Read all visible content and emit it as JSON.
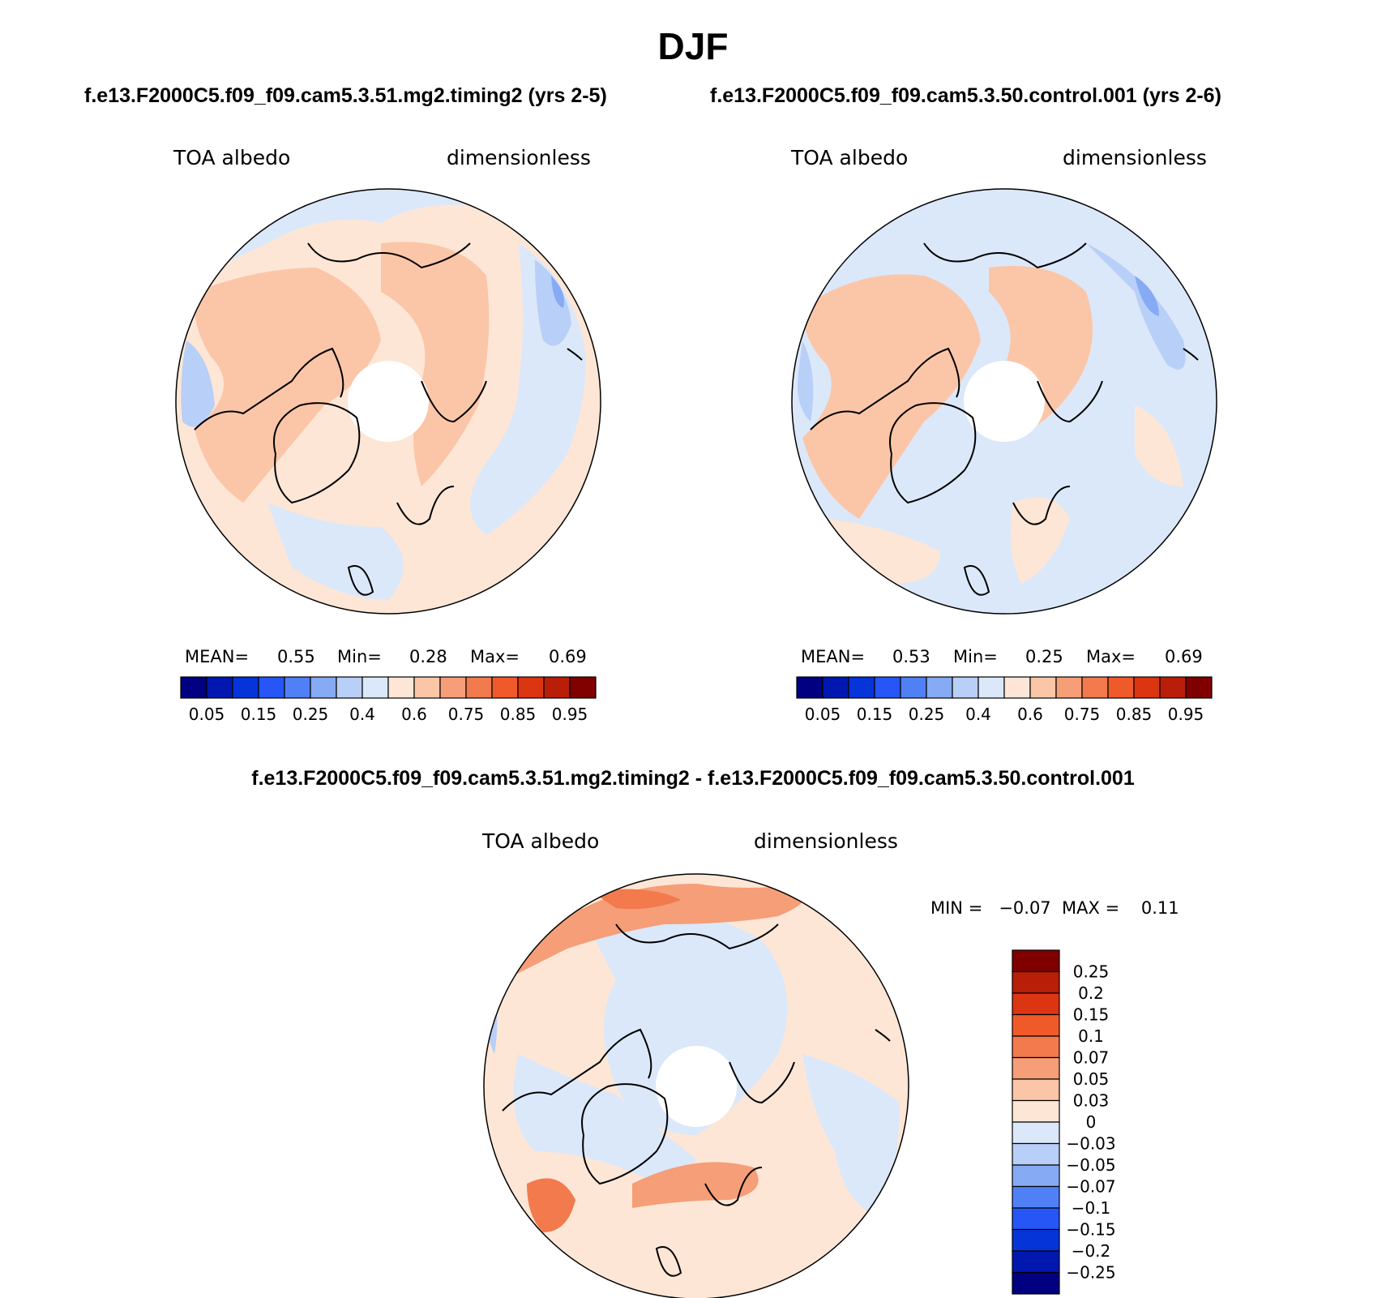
{
  "figure": {
    "title": "DJF",
    "subtitle_left": "f.e13.F2000C5.f09_f09.cam5.3.51.mg2.timing2 (yrs 2-5)",
    "subtitle_right": "f.e13.F2000C5.f09_f09.cam5.3.50.control.001 (yrs 2-6)",
    "diff_title": "f.e13.F2000C5.f09_f09.cam5.3.51.mg2.timing2 - f.e13.F2000C5.f09_f09.cam5.3.50.control.001"
  },
  "panels": {
    "left": {
      "variable": "TOA albedo",
      "units": "dimensionless",
      "mean_label": "MEAN=",
      "mean_value": "0.55",
      "min_label": "Min=",
      "min_value": "0.28",
      "max_label": "Max=",
      "max_value": "0.69"
    },
    "right": {
      "variable": "TOA albedo",
      "units": "dimensionless",
      "mean_label": "MEAN=",
      "mean_value": "0.53",
      "min_label": "Min=",
      "min_value": "0.25",
      "max_label": "Max=",
      "max_value": "0.69"
    },
    "diff": {
      "variable": "TOA albedo",
      "units": "dimensionless",
      "minmax_text": "MIN =   −0.07  MAX =    0.11"
    }
  },
  "colorbars": {
    "albedo": {
      "colors": [
        "#000080",
        "#0018b0",
        "#0534d8",
        "#2656f5",
        "#4f80f5",
        "#86aaf3",
        "#b8cff7",
        "#dbe8fa",
        "#fde6d6",
        "#fbc6a8",
        "#f59e78",
        "#f27a4d",
        "#f05a2a",
        "#dc3512",
        "#b81e08",
        "#800000"
      ],
      "tick_labels": [
        "0.05",
        "0.15",
        "0.25",
        "0.4",
        "0.6",
        "0.75",
        "0.85",
        "0.95"
      ]
    },
    "difference": {
      "colors": [
        "#800000",
        "#b81e08",
        "#dc3512",
        "#f05a2a",
        "#f27a4d",
        "#f59e78",
        "#fbc6a8",
        "#fde6d6",
        "#dbe8fa",
        "#b8cff7",
        "#86aaf3",
        "#4f80f5",
        "#2656f5",
        "#0534d8",
        "#0018b0",
        "#000080"
      ],
      "tick_labels": [
        "0.25",
        "0.2",
        "0.15",
        "0.1",
        "0.07",
        "0.05",
        "0.03",
        "0",
        "−0.03",
        "−0.05",
        "−0.07",
        "−0.1",
        "−0.15",
        "−0.2",
        "−0.25"
      ]
    }
  }
}
